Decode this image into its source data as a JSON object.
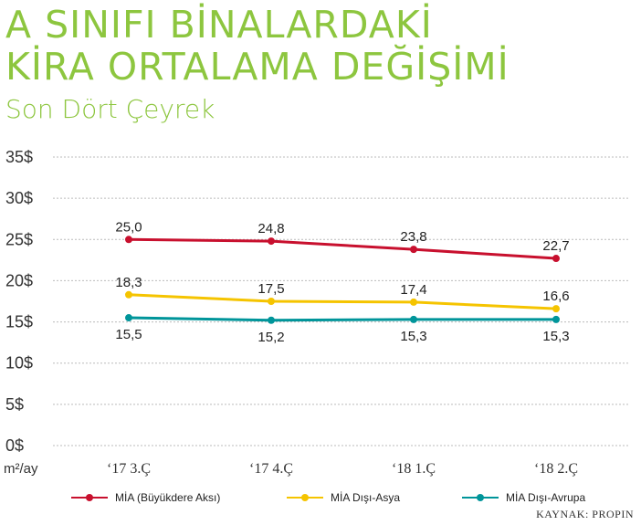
{
  "header": {
    "title_line1": "A SINIFI BİNALARDAKİ",
    "title_line2": "KİRA ORTALAMA DEĞİŞİMİ",
    "subtitle": "Son Dört Çeyrek"
  },
  "source": "KAYNAK: PROPIN",
  "unit_label": "m²/ay",
  "colors": {
    "title": "#8dc63f",
    "series_red": "#c8102e",
    "series_yellow": "#f5c400",
    "series_teal": "#00959a",
    "grid": "#bbbbbb"
  },
  "chart_data": {
    "type": "line",
    "categories": [
      "‘17 3.Ç",
      "‘17 4.Ç",
      "‘18 1.Ç",
      "‘18 2.Ç"
    ],
    "y_ticks": [
      "0$",
      "5$",
      "10$",
      "15$",
      "20$",
      "25$",
      "30$",
      "35$"
    ],
    "ylim": [
      0,
      35
    ],
    "grid": true,
    "legend_position": "bottom",
    "series": [
      {
        "name": "MİA (Büyükdere Aksı)",
        "color": "#c8102e",
        "values": [
          25.0,
          24.8,
          23.8,
          22.7
        ],
        "labels": [
          "25,0",
          "24,8",
          "23,8",
          "22,7"
        ],
        "label_position": "above"
      },
      {
        "name": "MİA Dışı-Asya",
        "color": "#f5c400",
        "values": [
          18.3,
          17.5,
          17.4,
          16.6
        ],
        "labels": [
          "18,3",
          "17,5",
          "17,4",
          "16,6"
        ],
        "label_position": "above"
      },
      {
        "name": "MİA Dışı-Avrupa",
        "color": "#00959a",
        "values": [
          15.5,
          15.2,
          15.3,
          15.3
        ],
        "labels": [
          "15,5",
          "15,2",
          "15,3",
          "15,3"
        ],
        "label_position": "below"
      }
    ]
  }
}
